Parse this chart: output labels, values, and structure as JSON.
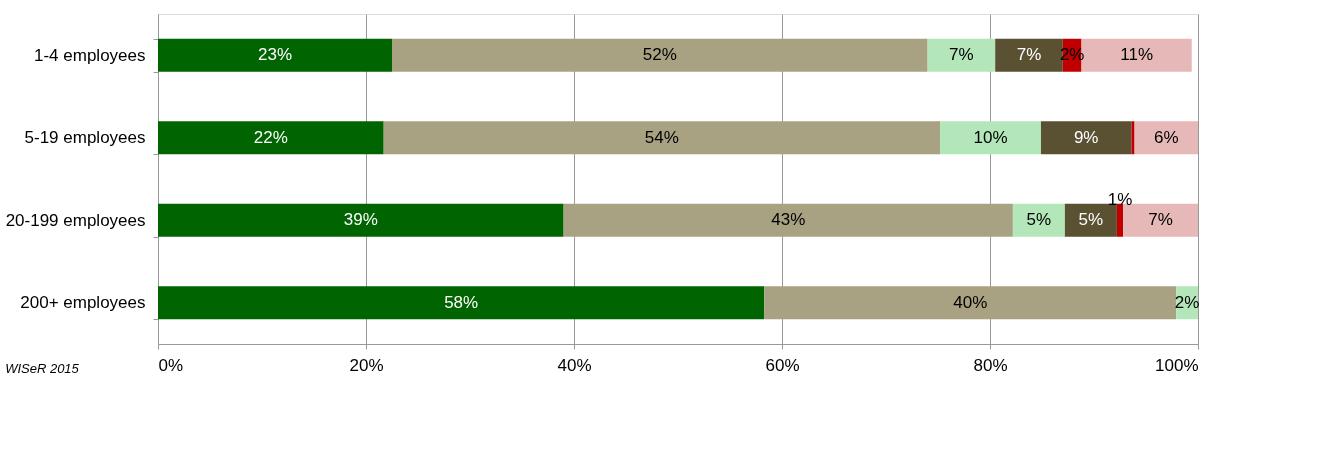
{
  "chart_data": {
    "type": "bar",
    "orientation": "horizontal",
    "stacked": true,
    "categories": [
      "1-4 employees",
      "5-19 employees",
      "20-199 employees",
      "200+ employees"
    ],
    "series": [
      {
        "color": "#006400",
        "values": [
          22.5,
          21.7,
          39.0,
          58.3
        ],
        "value_labels": [
          "23%",
          "22%",
          "39%",
          "58%"
        ]
      },
      {
        "color": "#a8a283",
        "values": [
          51.5,
          53.5,
          43.2,
          39.6
        ],
        "value_labels": [
          "52%",
          "54%",
          "43%",
          "40%"
        ]
      },
      {
        "color": "#b3e6b9",
        "values": [
          6.5,
          9.7,
          5.0,
          2.1
        ],
        "value_labels": [
          "7%",
          "10%",
          "5%",
          "2%"
        ]
      },
      {
        "color": "#5a5032",
        "values": [
          6.5,
          8.7,
          5.0,
          0
        ],
        "value_labels": [
          "7%",
          "9%",
          "5%",
          null
        ]
      },
      {
        "color": "#c00000",
        "values": [
          1.8,
          0.3,
          0.6,
          0
        ],
        "value_labels": [
          "2%",
          null,
          "1%",
          null
        ]
      },
      {
        "color": "#e6b9b8",
        "values": [
          10.6,
          6.1,
          7.2,
          0
        ],
        "value_labels": [
          "11%",
          "6%",
          "7%",
          null
        ]
      }
    ],
    "xlim": [
      0,
      100
    ],
    "xticks": [
      {
        "value": 0,
        "label": "0%"
      },
      {
        "value": 20,
        "label": "20%"
      },
      {
        "value": 40,
        "label": "40%"
      },
      {
        "value": 60,
        "label": "60%"
      },
      {
        "value": 80,
        "label": "80%"
      },
      {
        "value": 100,
        "label": "100%"
      }
    ],
    "grid": "x",
    "legend": false,
    "annotations": [
      "WISeR 2015"
    ]
  }
}
